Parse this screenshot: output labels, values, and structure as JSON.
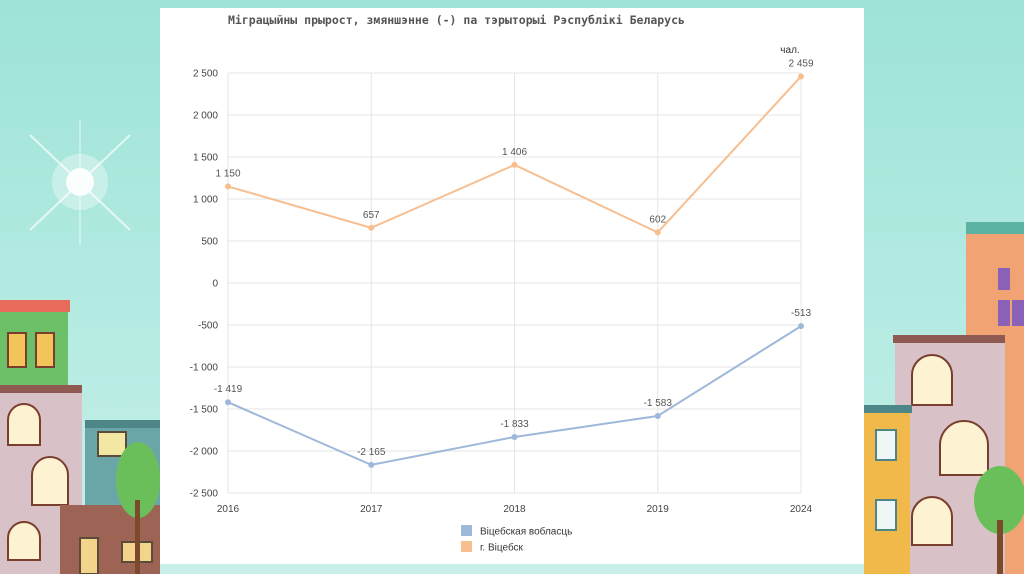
{
  "chart_data": {
    "type": "line",
    "title": "Міграцыйны прырост, змяншэнне (-) па тэрыторыі Рэспублікі Беларусь",
    "unit_label": "чал.",
    "categories": [
      "2016",
      "2017",
      "2018",
      "2019",
      "2024"
    ],
    "ylim": [
      -2500,
      2500
    ],
    "yticks": [
      2500,
      2000,
      1500,
      1000,
      500,
      0,
      -500,
      -1000,
      -1500,
      -2000,
      -2500
    ],
    "ytick_labels": [
      "2 500",
      "2 000",
      "1 500",
      "1 000",
      "500",
      "0",
      "-500",
      "-1 000",
      "-1 500",
      "-2 000",
      "-2 500"
    ],
    "grid": true,
    "legend_position": "bottom",
    "series": [
      {
        "name": "Віцебская вобласць",
        "color": "#9db8d9",
        "values": [
          -1419,
          -2165,
          -1833,
          -1583,
          -513
        ],
        "labels": [
          "-1 419",
          "-2 165",
          "-1 833",
          "-1 583",
          "-513"
        ]
      },
      {
        "name": "г. Віцебск",
        "color": "#f7be8f",
        "values": [
          1150,
          657,
          1406,
          602,
          2459
        ],
        "labels": [
          "1 150",
          "657",
          "1 406",
          "602",
          "2 459"
        ]
      }
    ]
  }
}
